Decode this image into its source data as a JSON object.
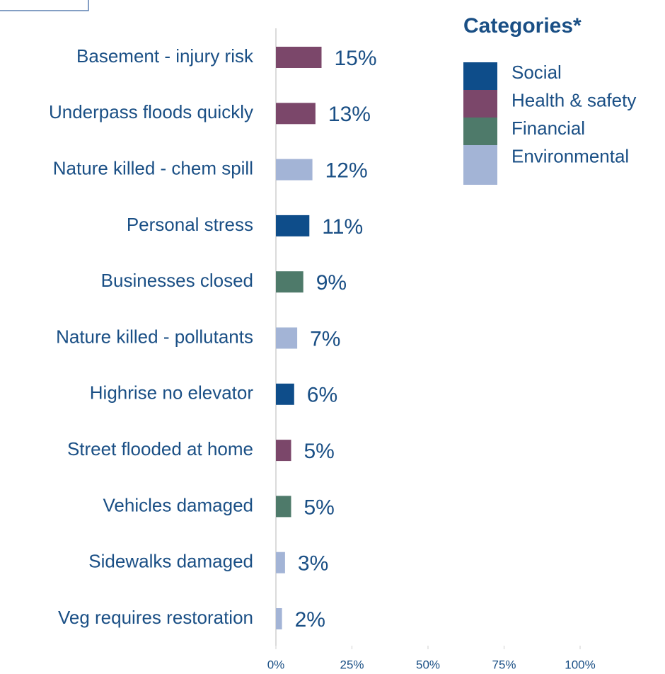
{
  "chart_data": {
    "type": "bar",
    "orientation": "horizontal",
    "categories": [
      "Basement - injury risk",
      "Underpass floods quickly",
      "Nature killed - chem spill",
      "Personal stress",
      "Businesses closed",
      "Nature killed - pollutants",
      "Highrise no elevator",
      "Street flooded at home",
      "Vehicles damaged",
      "Sidewalks damaged",
      "Veg requires restoration"
    ],
    "values": [
      15,
      13,
      12,
      11,
      9,
      7,
      6,
      5,
      5,
      3,
      2
    ],
    "value_labels": [
      "15%",
      "13%",
      "12%",
      "11%",
      "9%",
      "7%",
      "6%",
      "5%",
      "5%",
      "3%",
      "2%"
    ],
    "colors": [
      "#7b476a",
      "#7b476a",
      "#a3b4d6",
      "#0e4d8a",
      "#4e7a6a",
      "#a3b4d6",
      "#0e4d8a",
      "#7b476a",
      "#4e7a6a",
      "#a3b4d6",
      "#a3b4d6"
    ],
    "xlim": [
      0,
      100
    ],
    "xticks": [
      {
        "value": 0,
        "label": "0%"
      },
      {
        "value": 25,
        "label": "25%"
      },
      {
        "value": 50,
        "label": "50%"
      },
      {
        "value": 75,
        "label": "75%"
      },
      {
        "value": 100,
        "label": "100%"
      }
    ],
    "legend": {
      "title": "Categories*",
      "items": [
        {
          "name": "Social",
          "color": "#0e4d8a"
        },
        {
          "name": "Health & safety",
          "color": "#7b476a"
        },
        {
          "name": "Financial",
          "color": "#4e7a6a"
        },
        {
          "name": "Environmental",
          "color": "#a3b4d6"
        }
      ]
    }
  }
}
